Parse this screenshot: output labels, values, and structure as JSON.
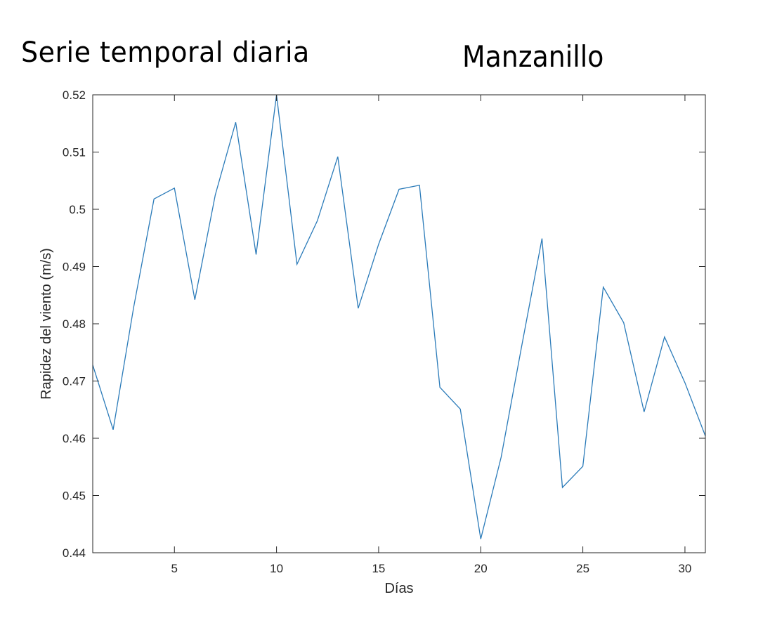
{
  "titles": {
    "left": "Serie temporal diaria",
    "right": "Manzanillo"
  },
  "chart_data": {
    "type": "line",
    "title": "Serie temporal diaria",
    "subtitle": "Manzanillo",
    "xlabel": "Días",
    "ylabel": "Rapidez del viento (m/s)",
    "xlim": [
      1,
      31
    ],
    "ylim": [
      0.44,
      0.52
    ],
    "xticks": [
      5,
      10,
      15,
      20,
      25,
      30
    ],
    "xtick_labels": [
      "5",
      "10",
      "15",
      "20",
      "25",
      "30"
    ],
    "yticks": [
      0.44,
      0.45,
      0.46,
      0.47,
      0.48,
      0.49,
      0.5,
      0.51,
      0.52
    ],
    "ytick_labels": [
      "0.44",
      "0.45",
      "0.46",
      "0.47",
      "0.48",
      "0.49",
      "0.5",
      "0.51",
      "0.52"
    ],
    "grid": false,
    "line_color": "#2b7bb9",
    "series": [
      {
        "x": [
          1,
          2,
          3,
          4,
          5,
          6,
          7,
          8,
          9,
          10,
          11,
          12,
          13,
          14,
          15,
          16,
          17,
          18,
          19,
          20,
          21,
          22,
          23,
          24,
          25,
          26,
          27,
          28,
          29,
          30,
          31
        ],
        "values": [
          0.4728,
          0.4615,
          0.4828,
          0.5018,
          0.5037,
          0.4842,
          0.5025,
          0.5152,
          0.4921,
          0.52,
          0.4904,
          0.498,
          0.5092,
          0.4827,
          0.4939,
          0.5035,
          0.5042,
          0.4689,
          0.4651,
          0.4424,
          0.4567,
          0.476,
          0.4949,
          0.4514,
          0.4551,
          0.4864,
          0.4802,
          0.4646,
          0.4777,
          0.4697,
          0.4604
        ]
      }
    ]
  }
}
